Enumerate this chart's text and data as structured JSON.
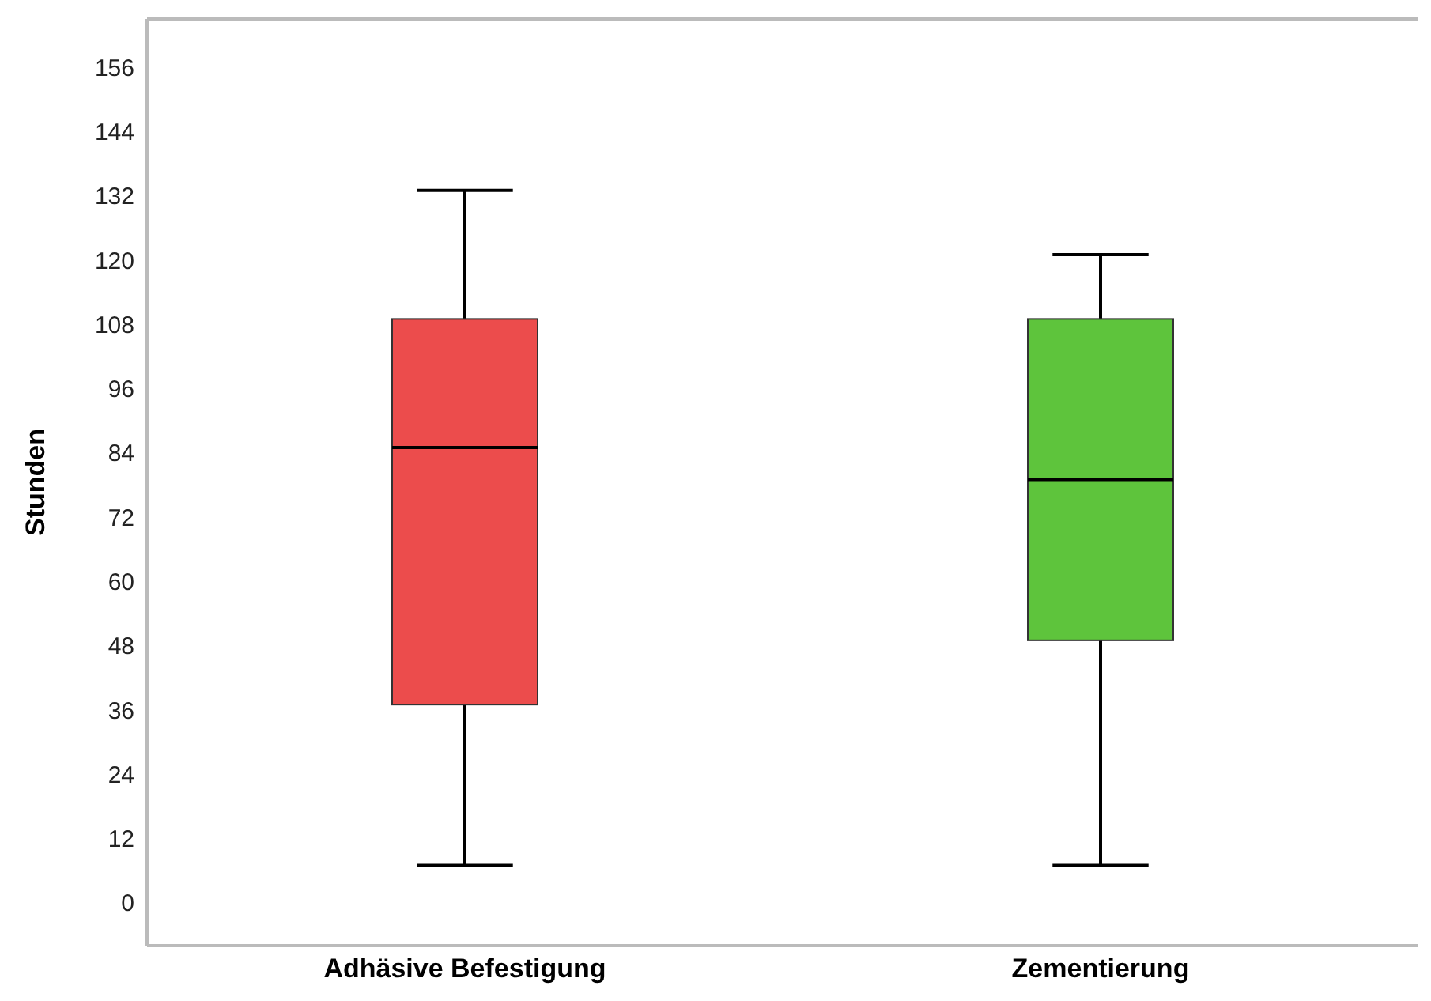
{
  "chart_data": {
    "type": "box",
    "ylabel": "Stunden",
    "categories": [
      "Adhäsive Befestigung",
      "Zementierung"
    ],
    "boxes": [
      {
        "low": 7,
        "q1": 37,
        "median": 85,
        "q3": 109,
        "high": 133
      },
      {
        "low": 7,
        "q1": 49,
        "median": 79,
        "q3": 109,
        "high": 121
      }
    ],
    "colors": [
      "#ec4c4c",
      "#5ec43c"
    ],
    "ylim": [
      -8,
      165
    ],
    "yticks": [
      0,
      12,
      24,
      36,
      48,
      60,
      72,
      84,
      96,
      108,
      120,
      132,
      144,
      156
    ],
    "grid": false
  }
}
